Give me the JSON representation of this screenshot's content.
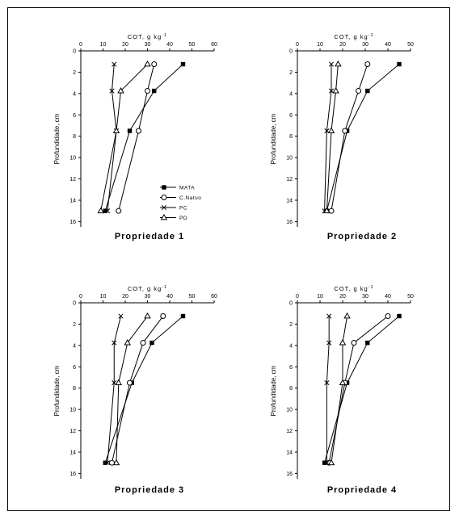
{
  "colors": {
    "line": "#000000",
    "background": "#ffffff",
    "frame": "#000000"
  },
  "chart_data": [
    {
      "type": "line",
      "title": "Propriedade 1",
      "xlabel": "COT, g kg",
      "xlabel_sup": "-1",
      "ylabel": "Profundidade, cm",
      "xlim": [
        0,
        60
      ],
      "ylim": [
        16.5,
        0
      ],
      "xticks": [
        0,
        10,
        20,
        30,
        40,
        50,
        60
      ],
      "yticks": [
        0,
        2,
        4,
        6,
        8,
        10,
        12,
        14,
        16
      ],
      "legend": "lower-center",
      "series": [
        {
          "name": "MATA",
          "marker": "filled-square",
          "x": [
            46,
            33,
            22,
            11
          ],
          "y": [
            1.25,
            3.75,
            7.5,
            15
          ]
        },
        {
          "name": "C.Natuo",
          "marker": "open-circle",
          "x": [
            33,
            30,
            26,
            17
          ],
          "y": [
            1.25,
            3.75,
            7.5,
            15
          ]
        },
        {
          "name": "PC",
          "marker": "cross",
          "x": [
            15,
            14,
            16,
            12
          ],
          "y": [
            1.25,
            3.75,
            7.5,
            15
          ]
        },
        {
          "name": "PD",
          "marker": "open-triangle",
          "x": [
            30,
            18,
            16,
            9
          ],
          "y": [
            1.25,
            3.75,
            7.5,
            15
          ]
        }
      ]
    },
    {
      "type": "line",
      "title": "Propriedade 2",
      "xlabel": "COT, g kg",
      "xlabel_sup": "-1",
      "ylabel": "Profundidade, cm",
      "xlim": [
        0,
        50
      ],
      "ylim": [
        16.5,
        0
      ],
      "xticks": [
        0,
        10,
        20,
        30,
        40,
        50
      ],
      "yticks": [
        0,
        2,
        4,
        6,
        8,
        10,
        12,
        14,
        16
      ],
      "series": [
        {
          "name": "MATA",
          "marker": "filled-square",
          "x": [
            45,
            31,
            22,
            13
          ],
          "y": [
            1.25,
            3.75,
            7.5,
            15
          ]
        },
        {
          "name": "C.Natuo",
          "marker": "open-circle",
          "x": [
            31,
            27,
            21,
            15
          ],
          "y": [
            1.25,
            3.75,
            7.5,
            15
          ]
        },
        {
          "name": "PC",
          "marker": "cross",
          "x": [
            15,
            15,
            13,
            12
          ],
          "y": [
            1.25,
            3.75,
            7.5,
            15
          ]
        },
        {
          "name": "PD",
          "marker": "open-triangle",
          "x": [
            18,
            17,
            15,
            13
          ],
          "y": [
            1.25,
            3.75,
            7.5,
            15
          ]
        }
      ]
    },
    {
      "type": "line",
      "title": "Propriedade 3",
      "xlabel": "COT, g kg",
      "xlabel_sup": "-1",
      "ylabel": "Profundidade, cm",
      "xlim": [
        0,
        60
      ],
      "ylim": [
        16.5,
        0
      ],
      "xticks": [
        0,
        10,
        20,
        30,
        40,
        50,
        60
      ],
      "yticks": [
        0,
        2,
        4,
        6,
        8,
        10,
        12,
        14,
        16
      ],
      "series": [
        {
          "name": "MATA",
          "marker": "filled-square",
          "x": [
            46,
            32,
            23,
            11
          ],
          "y": [
            1.25,
            3.75,
            7.5,
            15
          ]
        },
        {
          "name": "C.Natuo",
          "marker": "open-circle",
          "x": [
            37,
            28,
            22,
            14
          ],
          "y": [
            1.25,
            3.75,
            7.5,
            15
          ]
        },
        {
          "name": "PC",
          "marker": "cross",
          "x": [
            18,
            15,
            15,
            12
          ],
          "y": [
            1.25,
            3.75,
            7.5,
            15
          ]
        },
        {
          "name": "PD",
          "marker": "open-triangle",
          "x": [
            30,
            21,
            17,
            16
          ],
          "y": [
            1.25,
            3.75,
            7.5,
            15
          ]
        }
      ]
    },
    {
      "type": "line",
      "title": "Propriedade 4",
      "xlabel": "COT, g kg",
      "xlabel_sup": "-1",
      "ylabel": "Profundidade, cm",
      "xlim": [
        0,
        50
      ],
      "ylim": [
        16.5,
        0
      ],
      "xticks": [
        0,
        10,
        20,
        30,
        40,
        50
      ],
      "yticks": [
        0,
        2,
        4,
        6,
        8,
        10,
        12,
        14,
        16
      ],
      "series": [
        {
          "name": "MATA",
          "marker": "filled-square",
          "x": [
            45,
            31,
            22,
            12
          ],
          "y": [
            1.25,
            3.75,
            7.5,
            15
          ]
        },
        {
          "name": "C.Natuo",
          "marker": "open-circle",
          "x": [
            40,
            25,
            21,
            14
          ],
          "y": [
            1.25,
            3.75,
            7.5,
            15
          ]
        },
        {
          "name": "PC",
          "marker": "cross",
          "x": [
            14,
            14,
            13,
            13
          ],
          "y": [
            1.25,
            3.75,
            7.5,
            15
          ]
        },
        {
          "name": "PD",
          "marker": "open-triangle",
          "x": [
            22,
            20,
            20,
            15
          ],
          "y": [
            1.25,
            3.75,
            7.5,
            15
          ]
        }
      ]
    }
  ]
}
